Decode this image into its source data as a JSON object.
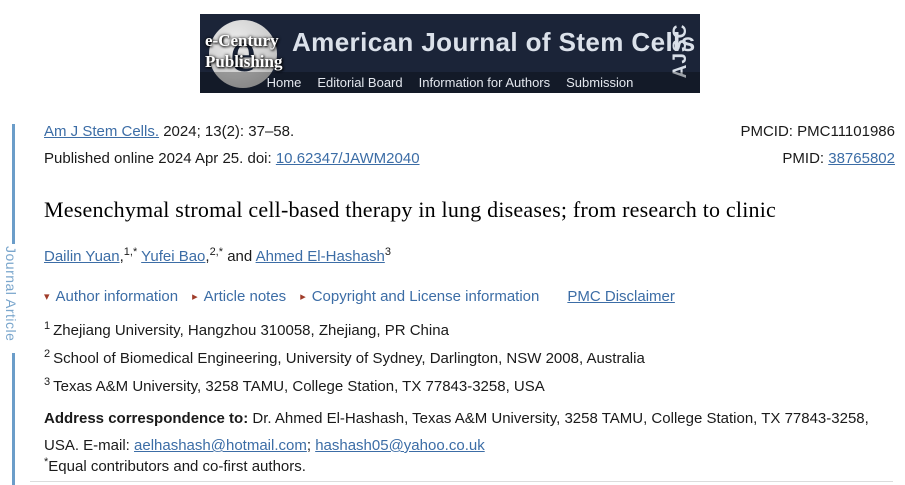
{
  "banner": {
    "logo_letter": "e",
    "logo_line1": "e-Century",
    "logo_line2": "Publishing",
    "journal_title": "American Journal of Stem Cells",
    "acronym": "AJSC",
    "nav": [
      {
        "label": "Home"
      },
      {
        "label": "Editorial Board"
      },
      {
        "label": "Information for Authors"
      },
      {
        "label": "Submission"
      }
    ],
    "bg_color": "#1b2438"
  },
  "sidebar": {
    "label": "Journal Article"
  },
  "citation": {
    "journal_link": "Am J Stem Cells.",
    "citation_rest": " 2024; 13(2): 37–58.",
    "published_prefix": "Published online 2024 Apr 25. doi: ",
    "doi_link": "10.62347/JAWM2040",
    "pmcid_label": "PMCID: ",
    "pmcid_value": "PMC11101986",
    "pmid_label": "PMID: ",
    "pmid_link": "38765802"
  },
  "article": {
    "title": "Mesenchymal stromal cell-based therapy in lung diseases; from research to clinic",
    "authors": [
      {
        "name": "Dailin Yuan",
        "comma": ",",
        "sup": "1,*"
      },
      {
        "name": "Yufei Bao",
        "comma": ",",
        "sup": "2,*"
      },
      {
        "name": "Ahmed El-Hashash",
        "comma": "",
        "sup": "3"
      }
    ],
    "and_label": " and ",
    "meta_links": [
      {
        "label": "Author information",
        "arrow": "▾"
      },
      {
        "label": "Article notes",
        "arrow": "▸"
      },
      {
        "label": "Copyright and License information",
        "arrow": "▸"
      }
    ],
    "disclaimer_link": "PMC Disclaimer",
    "affiliations": [
      {
        "sup": "1",
        "text": "Zhejiang University, Hangzhou 310058, Zhejiang, PR China"
      },
      {
        "sup": "2",
        "text": "School of Biomedical Engineering, University of Sydney, Darlington, NSW 2008, Australia"
      },
      {
        "sup": "3",
        "text": "Texas A&M University, 3258 TAMU, College Station, TX 77843-3258, USA"
      }
    ],
    "correspondence_label": "Address correspondence to:",
    "correspondence_text": " Dr. Ahmed El-Hashash, Texas A&M University, 3258 TAMU, College Station, TX 77843-3258, USA. E-mail: ",
    "email1": "aelhashash@hotmail.com",
    "email_sep": "; ",
    "email2": "hashash05@yahoo.co.uk",
    "equal_sup": "*",
    "equal_note": "Equal contributors and co-first authors."
  },
  "colors": {
    "banner_bg": "#1b2438",
    "link_blue": "#3c6da6",
    "arrow_red": "#a03c2a",
    "sidebar_blue": "#6b9dc9"
  }
}
